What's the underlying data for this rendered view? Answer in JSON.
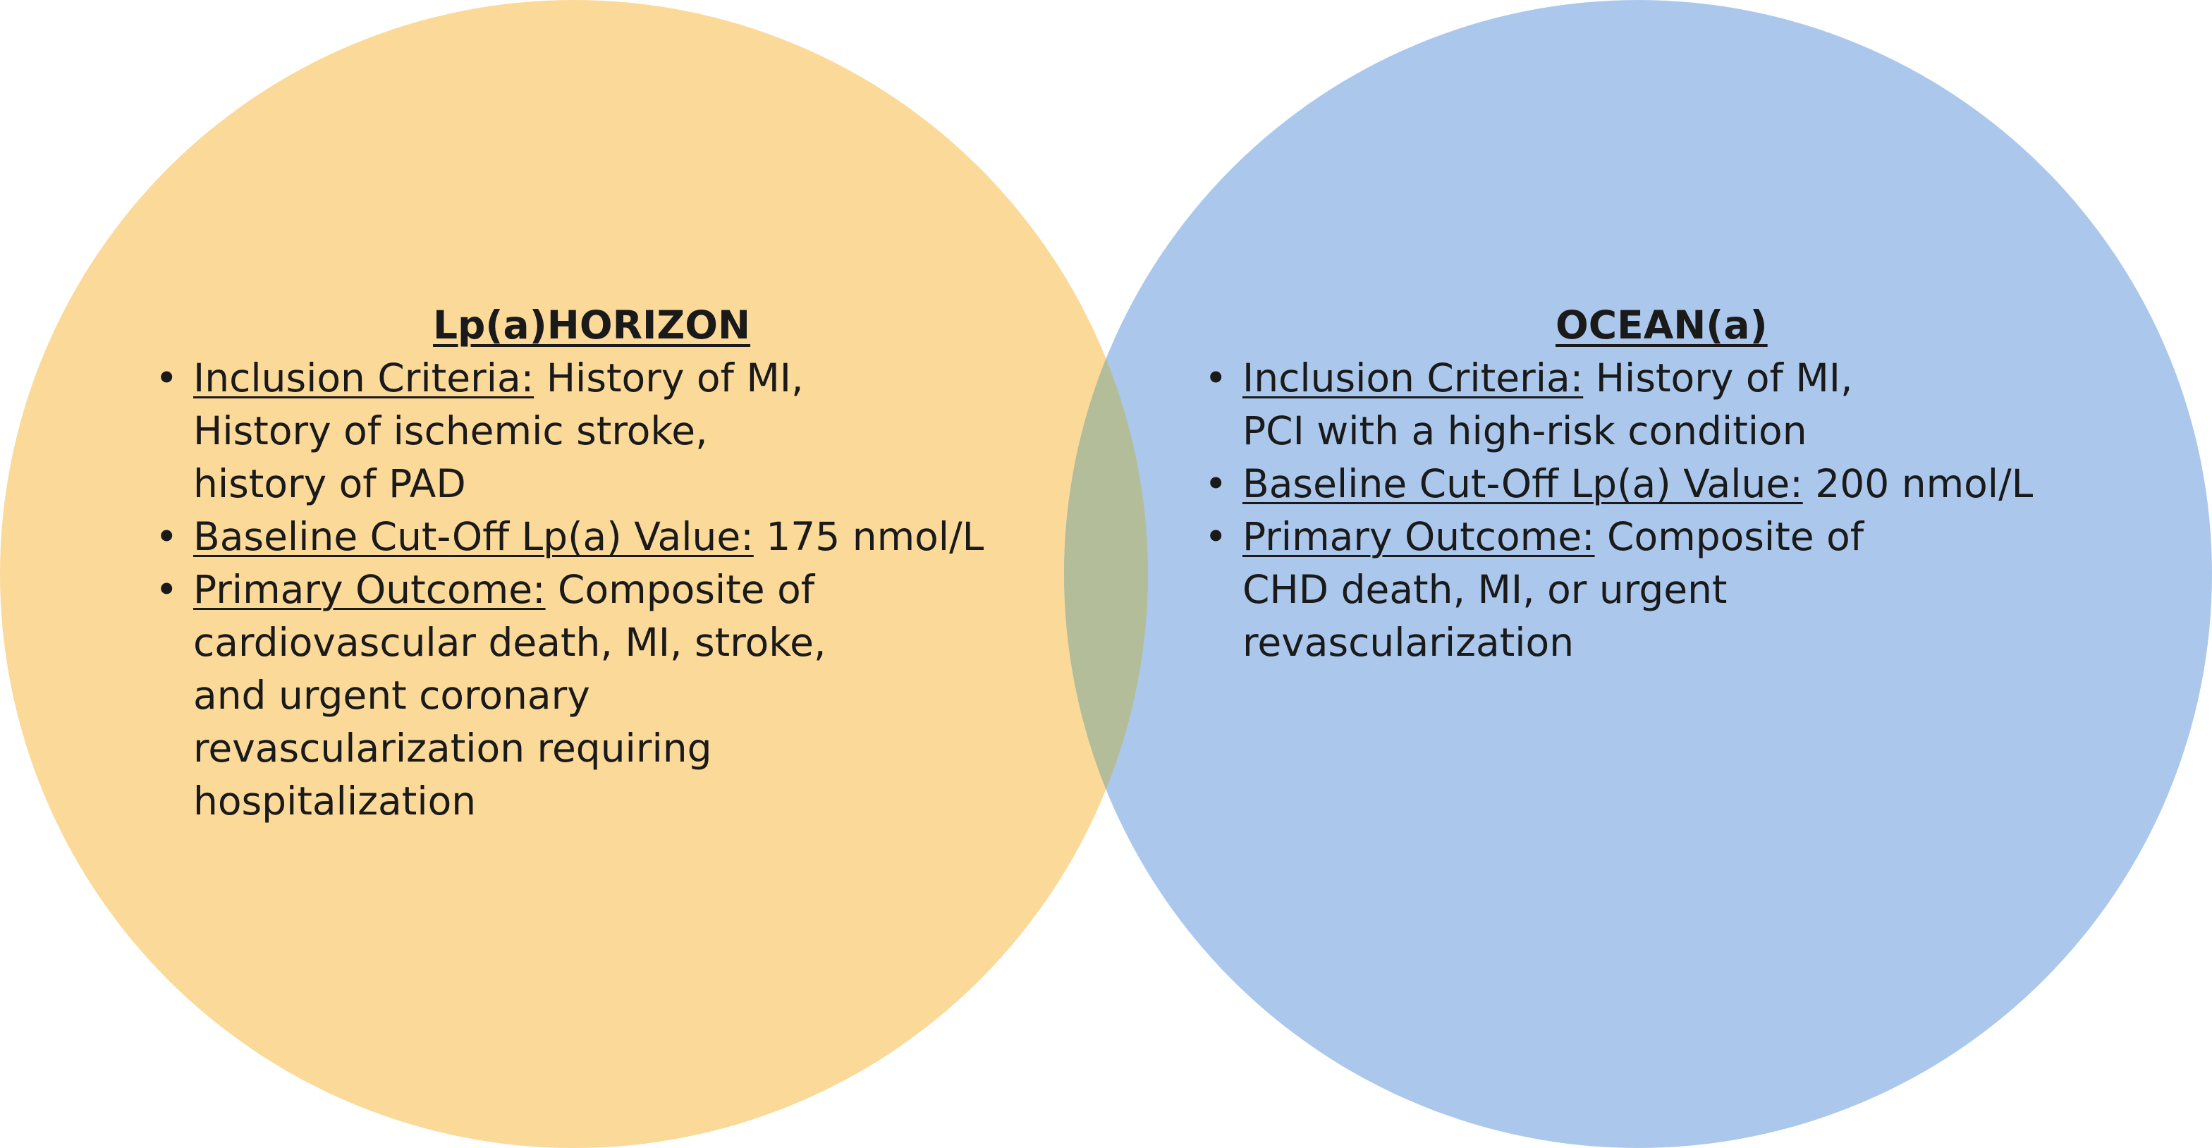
{
  "colors": {
    "left_circle": "#fbd999",
    "right_circle": "#abc8ec",
    "overlap": "#b3bd99",
    "text": "#1a1a1a"
  },
  "left": {
    "title": "Lp(a)HORIZON",
    "items": [
      {
        "label": "Inclusion Criteria:",
        "first": " History of MI,",
        "more": [
          "History of ischemic stroke,",
          "history of PAD"
        ]
      },
      {
        "label": "Baseline Cut-Off Lp(a) Value:",
        "first": " 175 nmol/L",
        "more": []
      },
      {
        "label": "Primary Outcome:",
        "first": " Composite of",
        "more": [
          "cardiovascular death, MI, stroke,",
          "and urgent coronary",
          "revascularization requiring",
          "hospitalization"
        ]
      }
    ]
  },
  "right": {
    "title": "OCEAN(a)",
    "items": [
      {
        "label": "Inclusion Criteria:",
        "first": " History of MI,",
        "more": [
          "PCI with a high-risk condition"
        ]
      },
      {
        "label": "Baseline Cut-Off Lp(a) Value:",
        "first": " 200 nmol/L",
        "more": []
      },
      {
        "label": "Primary Outcome:",
        "first": " Composite of",
        "more": [
          "CHD death, MI, or urgent",
          "revascularization"
        ]
      }
    ]
  }
}
